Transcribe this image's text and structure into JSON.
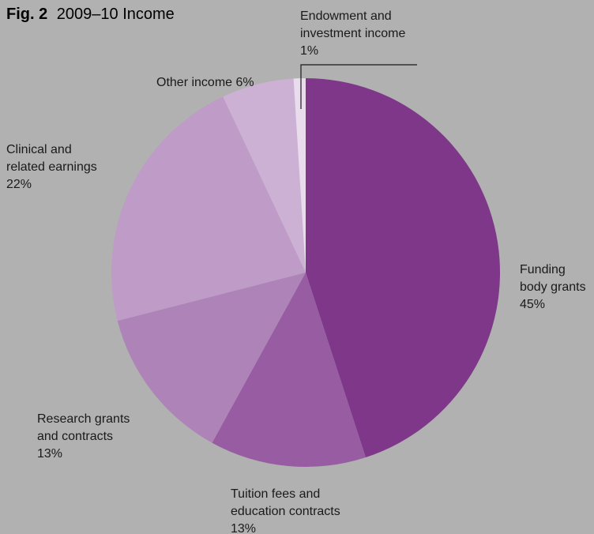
{
  "chart_data": {
    "type": "pie",
    "title_prefix": "Fig. 2",
    "title": "2009–10 Income",
    "slices": [
      {
        "name": "Funding body grants",
        "lines": [
          "Funding",
          "body grants"
        ],
        "pct_label": "45%",
        "value": 45,
        "color": "#7e3789"
      },
      {
        "name": "Tuition fees and education contracts",
        "lines": [
          "Tuition fees and",
          "education contracts"
        ],
        "pct_label": "13%",
        "value": 13,
        "color": "#975ca2"
      },
      {
        "name": "Research grants and contracts",
        "lines": [
          "Research grants",
          "and contracts"
        ],
        "pct_label": "13%",
        "value": 13,
        "color": "#ae84b8"
      },
      {
        "name": "Clinical and related earnings",
        "lines": [
          "Clinical and",
          "related earnings"
        ],
        "pct_label": "22%",
        "value": 22,
        "color": "#bf9bc7"
      },
      {
        "name": "Other income",
        "lines": [
          "Other income 6%"
        ],
        "pct_label": "",
        "value": 6,
        "color": "#cdb1d5"
      },
      {
        "name": "Endowment and investment income",
        "lines": [
          "Endowment and",
          "investment income"
        ],
        "pct_label": "1%",
        "value": 1,
        "color": "#e9dcec"
      }
    ]
  }
}
